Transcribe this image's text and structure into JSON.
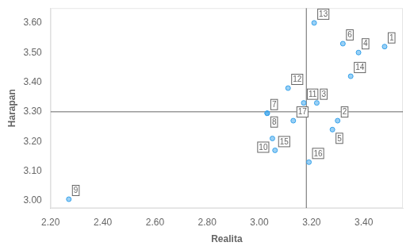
{
  "chart_data": {
    "type": "scatter",
    "x": [
      3.48,
      3.3,
      3.22,
      3.38,
      3.28,
      3.32,
      3.03,
      3.03,
      2.27,
      3.05,
      3.17,
      3.11,
      3.21,
      3.35,
      3.06,
      3.19,
      3.13
    ],
    "values": [
      3.52,
      3.27,
      3.33,
      3.5,
      3.24,
      3.53,
      3.295,
      3.295,
      3.005,
      3.21,
      3.33,
      3.38,
      3.6,
      3.42,
      3.17,
      3.13,
      3.27
    ],
    "point_labels": [
      "1",
      "2",
      "3",
      "4",
      "5",
      "6",
      "7",
      "8",
      "9",
      "10",
      "11",
      "12",
      "13",
      "14",
      "15",
      "16",
      "17"
    ],
    "vline": 3.18,
    "hline": 3.3,
    "xlabel": "Realita",
    "ylabel": "Harapan",
    "xlim": [
      2.2,
      3.55
    ],
    "ylim": [
      2.975,
      3.65
    ],
    "xticks": [
      {
        "value": 2.2,
        "label": "2.20"
      },
      {
        "value": 2.4,
        "label": "2.40"
      },
      {
        "value": 2.6,
        "label": "2.60"
      },
      {
        "value": 2.8,
        "label": "2.80"
      },
      {
        "value": 3.0,
        "label": "3.00"
      },
      {
        "value": 3.2,
        "label": "3.20"
      },
      {
        "value": 3.4,
        "label": "3.40"
      }
    ],
    "yticks": [
      {
        "value": 3.0,
        "label": "3.00"
      },
      {
        "value": 3.1,
        "label": "3.10"
      },
      {
        "value": 3.2,
        "label": "3.20"
      },
      {
        "value": 3.3,
        "label": "3.30"
      },
      {
        "value": 3.4,
        "label": "3.40"
      },
      {
        "value": 3.5,
        "label": "3.50"
      },
      {
        "value": 3.6,
        "label": "3.60"
      }
    ],
    "grid": false
  }
}
